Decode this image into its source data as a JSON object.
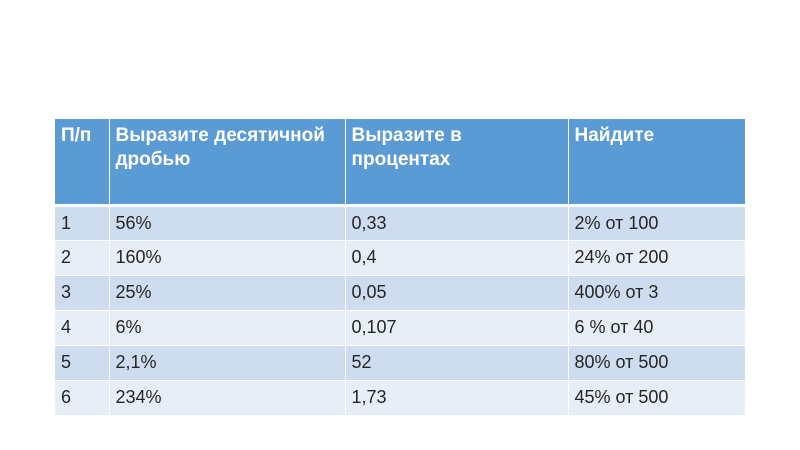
{
  "table": {
    "headers": [
      "П/п",
      "Выразите десятичной дробью",
      "Выразите в процентах",
      "Найдите"
    ],
    "rows": [
      [
        "1",
        "56%",
        "0,33",
        "2% от 100"
      ],
      [
        "2",
        "160%",
        "0,4",
        "24% от 200"
      ],
      [
        "3",
        "25%",
        "0,05",
        "400% от 3"
      ],
      [
        "4",
        "6%",
        "0,107",
        "6 % от 40"
      ],
      [
        "5",
        "2,1%",
        "52",
        "80% от 500"
      ],
      [
        "6",
        "234%",
        "1,73",
        "45% от 500"
      ]
    ]
  },
  "colors": {
    "header_bg": "#5b9bd5",
    "row_odd_bg": "#cddcee",
    "row_even_bg": "#e8eef7"
  }
}
